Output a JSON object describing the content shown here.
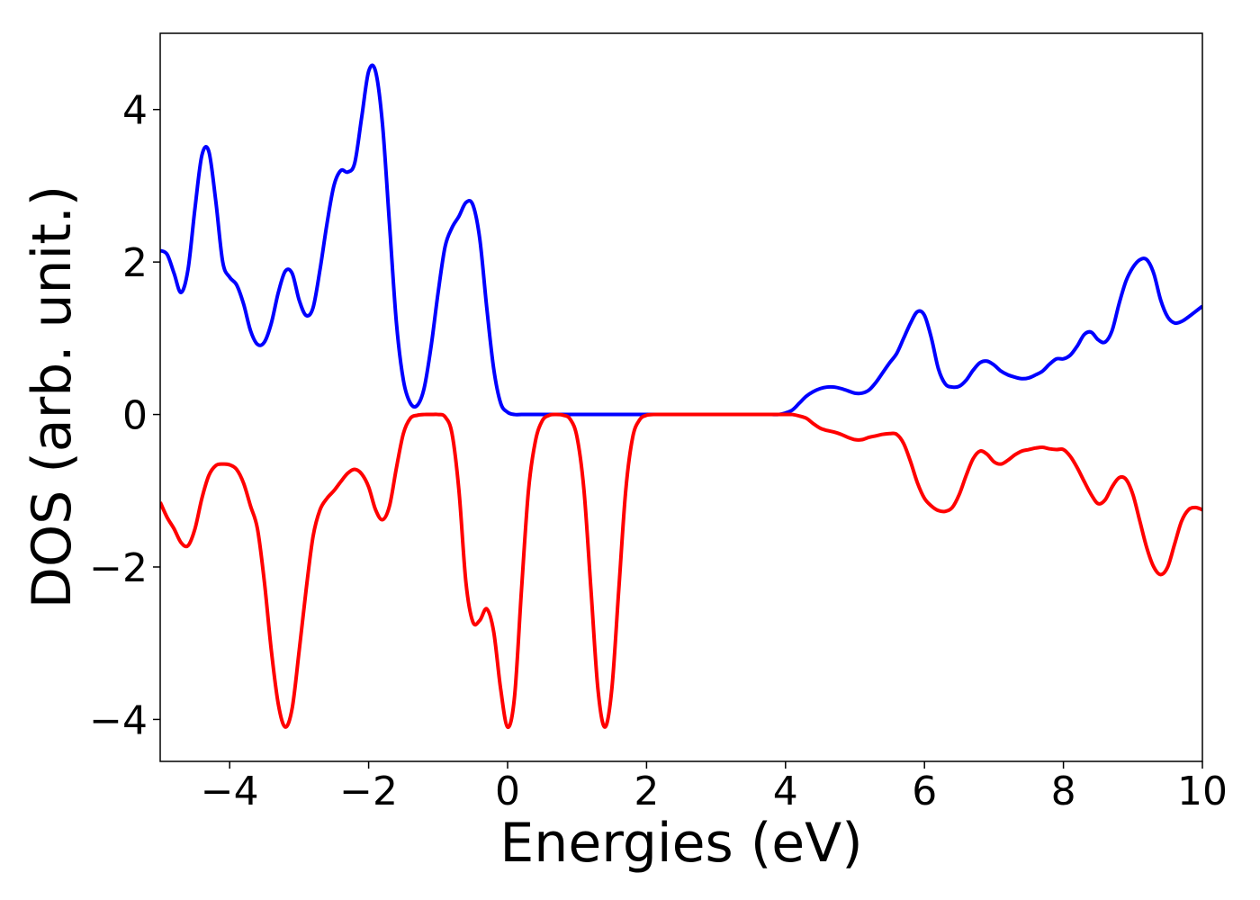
{
  "chart_data": {
    "type": "line",
    "xlabel": "Energies (eV)",
    "ylabel": "DOS (arb. unit.)",
    "xlim": [
      -5,
      10
    ],
    "ylim": [
      -4.55,
      5.0
    ],
    "xticks": [
      {
        "value": -4,
        "label": "−4"
      },
      {
        "value": -2,
        "label": "−2"
      },
      0,
      2,
      4,
      6,
      8,
      10
    ],
    "yticks": [
      {
        "value": -4,
        "label": "−4"
      },
      {
        "value": -2,
        "label": "−2"
      },
      0,
      2,
      4
    ],
    "x": [
      -5.0,
      -4.9,
      -4.8,
      -4.7,
      -4.6,
      -4.5,
      -4.4,
      -4.3,
      -4.2,
      -4.1,
      -4.0,
      -3.9,
      -3.8,
      -3.7,
      -3.6,
      -3.5,
      -3.4,
      -3.3,
      -3.2,
      -3.1,
      -3.0,
      -2.9,
      -2.8,
      -2.7,
      -2.6,
      -2.5,
      -2.4,
      -2.3,
      -2.2,
      -2.1,
      -2.0,
      -1.9,
      -1.8,
      -1.7,
      -1.6,
      -1.5,
      -1.4,
      -1.3,
      -1.2,
      -1.1,
      -1.0,
      -0.9,
      -0.8,
      -0.7,
      -0.6,
      -0.5,
      -0.4,
      -0.3,
      -0.2,
      -0.1,
      0.0,
      0.1,
      0.2,
      0.3,
      0.4,
      0.5,
      0.6,
      0.7,
      0.8,
      0.9,
      1.0,
      1.1,
      1.2,
      1.3,
      1.4,
      1.5,
      1.6,
      1.7,
      1.8,
      1.9,
      2.0,
      2.1,
      2.2,
      2.3,
      2.4,
      2.5,
      2.6,
      2.7,
      2.8,
      2.9,
      3.0,
      3.1,
      3.2,
      3.3,
      3.4,
      3.5,
      3.6,
      3.7,
      3.8,
      3.9,
      4.0,
      4.1,
      4.2,
      4.3,
      4.4,
      4.5,
      4.6,
      4.7,
      4.8,
      4.9,
      5.0,
      5.1,
      5.2,
      5.3,
      5.4,
      5.5,
      5.6,
      5.7,
      5.8,
      5.9,
      6.0,
      6.1,
      6.2,
      6.3,
      6.4,
      6.5,
      6.6,
      6.7,
      6.8,
      6.9,
      7.0,
      7.1,
      7.2,
      7.3,
      7.4,
      7.5,
      7.6,
      7.7,
      7.8,
      7.9,
      8.0,
      8.1,
      8.2,
      8.3,
      8.4,
      8.5,
      8.6,
      8.7,
      8.8,
      8.9,
      9.0,
      9.1,
      9.2,
      9.3,
      9.4,
      9.5,
      9.6,
      9.7,
      9.8,
      9.9,
      10.0
    ],
    "series": [
      {
        "color": "#0000ff",
        "values": [
          2.15,
          2.1,
          1.85,
          1.6,
          1.9,
          2.7,
          3.4,
          3.45,
          2.8,
          2.0,
          1.8,
          1.7,
          1.45,
          1.1,
          0.92,
          0.95,
          1.2,
          1.6,
          1.88,
          1.85,
          1.5,
          1.3,
          1.4,
          1.9,
          2.5,
          3.0,
          3.2,
          3.18,
          3.3,
          3.9,
          4.5,
          4.5,
          3.8,
          2.5,
          1.2,
          0.45,
          0.15,
          0.12,
          0.35,
          0.9,
          1.6,
          2.2,
          2.45,
          2.6,
          2.78,
          2.75,
          2.3,
          1.4,
          0.6,
          0.15,
          0.03,
          0,
          0,
          0,
          0,
          0,
          0,
          0,
          0,
          0,
          0,
          0,
          0,
          0,
          0,
          0,
          0,
          0,
          0,
          0,
          0,
          0,
          0,
          0,
          0,
          0,
          0,
          0,
          0,
          0,
          0,
          0,
          0,
          0,
          0,
          0,
          0,
          0,
          0,
          0,
          0.02,
          0.06,
          0.15,
          0.24,
          0.3,
          0.34,
          0.36,
          0.36,
          0.34,
          0.31,
          0.28,
          0.28,
          0.32,
          0.42,
          0.55,
          0.68,
          0.8,
          1.0,
          1.2,
          1.35,
          1.3,
          1.0,
          0.6,
          0.4,
          0.36,
          0.37,
          0.45,
          0.58,
          0.68,
          0.7,
          0.65,
          0.57,
          0.52,
          0.49,
          0.47,
          0.48,
          0.52,
          0.57,
          0.66,
          0.73,
          0.73,
          0.78,
          0.9,
          1.05,
          1.08,
          0.98,
          0.95,
          1.1,
          1.45,
          1.75,
          1.93,
          2.03,
          2.03,
          1.85,
          1.5,
          1.28,
          1.2,
          1.22,
          1.28,
          1.35,
          1.42
        ]
      },
      {
        "color": "#ff0000",
        "values": [
          -1.15,
          -1.35,
          -1.5,
          -1.68,
          -1.72,
          -1.5,
          -1.1,
          -0.8,
          -0.67,
          -0.65,
          -0.66,
          -0.72,
          -0.9,
          -1.2,
          -1.5,
          -2.2,
          -3.1,
          -3.8,
          -4.1,
          -3.85,
          -3.1,
          -2.3,
          -1.6,
          -1.25,
          -1.1,
          -1.0,
          -0.88,
          -0.77,
          -0.72,
          -0.78,
          -0.95,
          -1.25,
          -1.38,
          -1.2,
          -0.7,
          -0.25,
          -0.05,
          -0.01,
          0,
          0,
          0,
          -0.03,
          -0.25,
          -1.0,
          -2.2,
          -2.72,
          -2.7,
          -2.55,
          -2.85,
          -3.6,
          -4.1,
          -3.7,
          -2.3,
          -1.0,
          -0.35,
          -0.08,
          -0.01,
          0,
          -0.01,
          -0.06,
          -0.3,
          -1.0,
          -2.3,
          -3.6,
          -4.1,
          -3.6,
          -2.3,
          -1.0,
          -0.3,
          -0.07,
          -0.01,
          0,
          0,
          0,
          0,
          0,
          0,
          0,
          0,
          0,
          0,
          0,
          0,
          0,
          0,
          0,
          0,
          0,
          0,
          0,
          0,
          0,
          -0.02,
          -0.05,
          -0.12,
          -0.18,
          -0.21,
          -0.23,
          -0.26,
          -0.3,
          -0.33,
          -0.33,
          -0.3,
          -0.28,
          -0.26,
          -0.25,
          -0.26,
          -0.38,
          -0.62,
          -0.9,
          -1.1,
          -1.2,
          -1.26,
          -1.27,
          -1.22,
          -1.05,
          -0.8,
          -0.58,
          -0.48,
          -0.52,
          -0.62,
          -0.65,
          -0.6,
          -0.53,
          -0.48,
          -0.46,
          -0.44,
          -0.43,
          -0.45,
          -0.46,
          -0.46,
          -0.55,
          -0.7,
          -0.88,
          -1.05,
          -1.17,
          -1.12,
          -0.95,
          -0.83,
          -0.85,
          -1.05,
          -1.4,
          -1.75,
          -2.0,
          -2.1,
          -2.0,
          -1.7,
          -1.4,
          -1.25,
          -1.22,
          -1.25
        ]
      }
    ]
  }
}
